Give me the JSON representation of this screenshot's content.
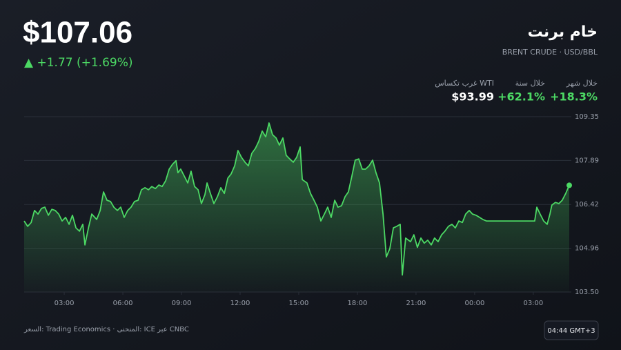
{
  "price": "$107.06",
  "change": "▲ +1.77 (+1.69%)",
  "header": {
    "title": "خام برنت",
    "subtitle": "BRENT CRUDE · USD/BBL"
  },
  "stats": [
    {
      "label": "خلال شهر",
      "value": "+18.3%"
    },
    {
      "label": "خلال سنة",
      "value": "+62.1%"
    },
    {
      "label": "غرب تكساس WTI",
      "value": "$93.99"
    }
  ],
  "footer": {
    "source": "السعر: Trading Economics · المنحنى: ICE عبر CNBC",
    "time": "04:44 GMT+3"
  },
  "chart_data": {
    "type": "line",
    "color": "#4cd964",
    "grid": true,
    "xlim": [
      0.95,
      28.84
    ],
    "ylim": [
      103.5,
      109.35
    ],
    "xticks": [
      {
        "value": 3,
        "label": "03:00"
      },
      {
        "value": 6,
        "label": "06:00"
      },
      {
        "value": 9,
        "label": "09:00"
      },
      {
        "value": 12,
        "label": "12:00"
      },
      {
        "value": 15,
        "label": "15:00"
      },
      {
        "value": 18,
        "label": "18:00"
      },
      {
        "value": 21,
        "label": "21:00"
      },
      {
        "value": 24,
        "label": "00:00"
      },
      {
        "value": 27,
        "label": "03:00"
      }
    ],
    "yticks": [
      109.35,
      107.89,
      106.42,
      104.96,
      {
        "value": 103.5,
        "label": "103.50"
      }
    ],
    "x": [
      0.95,
      1.13,
      1.31,
      1.48,
      1.66,
      1.84,
      2.01,
      2.19,
      2.37,
      2.54,
      2.72,
      2.89,
      3.07,
      3.25,
      3.42,
      3.6,
      3.78,
      3.95,
      4.06,
      4.24,
      4.41,
      4.66,
      4.84,
      5.01,
      5.19,
      5.37,
      5.54,
      5.72,
      5.89,
      6.07,
      6.25,
      6.42,
      6.6,
      6.78,
      6.95,
      7.13,
      7.31,
      7.48,
      7.66,
      7.84,
      8.01,
      8.19,
      8.37,
      8.54,
      8.72,
      8.82,
      8.96,
      9.14,
      9.32,
      9.49,
      9.67,
      9.85,
      10.02,
      10.2,
      10.31,
      10.48,
      10.66,
      10.84,
      11.01,
      11.19,
      11.37,
      11.54,
      11.72,
      11.89,
      12.07,
      12.25,
      12.42,
      12.6,
      12.78,
      12.95,
      13.13,
      13.31,
      13.48,
      13.66,
      13.84,
      14.01,
      14.19,
      14.36,
      14.54,
      14.72,
      14.89,
      15.07,
      15.18,
      15.42,
      15.6,
      15.78,
      15.95,
      16.13,
      16.31,
      16.48,
      16.66,
      16.84,
      17.01,
      17.19,
      17.37,
      17.54,
      17.72,
      17.89,
      18.07,
      18.25,
      18.42,
      18.6,
      18.78,
      18.95,
      19.13,
      19.31,
      19.48,
      19.66,
      19.84,
      20.01,
      20.19,
      20.3,
      20.47,
      20.72,
      20.89,
      21.07,
      21.25,
      21.42,
      21.6,
      21.78,
      21.95,
      22.13,
      22.31,
      22.48,
      22.66,
      22.84,
      23.01,
      23.19,
      23.37,
      23.54,
      23.72,
      23.89,
      24.07,
      24.25,
      24.42,
      24.6,
      27.07,
      27.18,
      27.35,
      27.53,
      27.71,
      27.85,
      27.95,
      28.13,
      28.31,
      28.48,
      28.66,
      28.84
    ],
    "values": [
      105.87,
      105.69,
      105.82,
      106.22,
      106.1,
      106.29,
      106.33,
      106.06,
      106.26,
      106.22,
      106.1,
      105.87,
      105.99,
      105.76,
      106.06,
      105.64,
      105.53,
      105.76,
      105.07,
      105.64,
      106.1,
      105.92,
      106.22,
      106.84,
      106.56,
      106.52,
      106.33,
      106.22,
      106.33,
      105.99,
      106.22,
      106.33,
      106.52,
      106.56,
      106.91,
      106.98,
      106.91,
      107.02,
      106.95,
      107.07,
      107.02,
      107.21,
      107.6,
      107.76,
      107.88,
      107.48,
      107.6,
      107.37,
      107.14,
      107.53,
      107.02,
      106.91,
      106.45,
      106.75,
      107.14,
      106.79,
      106.45,
      106.68,
      106.98,
      106.79,
      107.3,
      107.44,
      107.71,
      108.22,
      107.99,
      107.83,
      107.71,
      108.13,
      108.29,
      108.52,
      108.87,
      108.68,
      109.14,
      108.75,
      108.64,
      108.4,
      108.64,
      108.06,
      107.94,
      107.83,
      107.99,
      108.34,
      107.25,
      107.14,
      106.79,
      106.56,
      106.33,
      105.87,
      106.1,
      106.33,
      105.99,
      106.56,
      106.33,
      106.38,
      106.68,
      106.84,
      107.37,
      107.9,
      107.94,
      107.6,
      107.6,
      107.71,
      107.9,
      107.48,
      107.14,
      106.1,
      104.67,
      104.95,
      105.64,
      105.69,
      105.76,
      104.07,
      105.3,
      105.18,
      105.41,
      104.99,
      105.3,
      105.13,
      105.23,
      105.07,
      105.3,
      105.18,
      105.41,
      105.53,
      105.69,
      105.76,
      105.64,
      105.87,
      105.82,
      106.1,
      106.22,
      106.1,
      106.06,
      105.99,
      105.92,
      105.87,
      105.87,
      106.33,
      106.1,
      105.87,
      105.76,
      106.1,
      106.4,
      106.49,
      106.45,
      106.56,
      106.79,
      107.06
    ]
  }
}
